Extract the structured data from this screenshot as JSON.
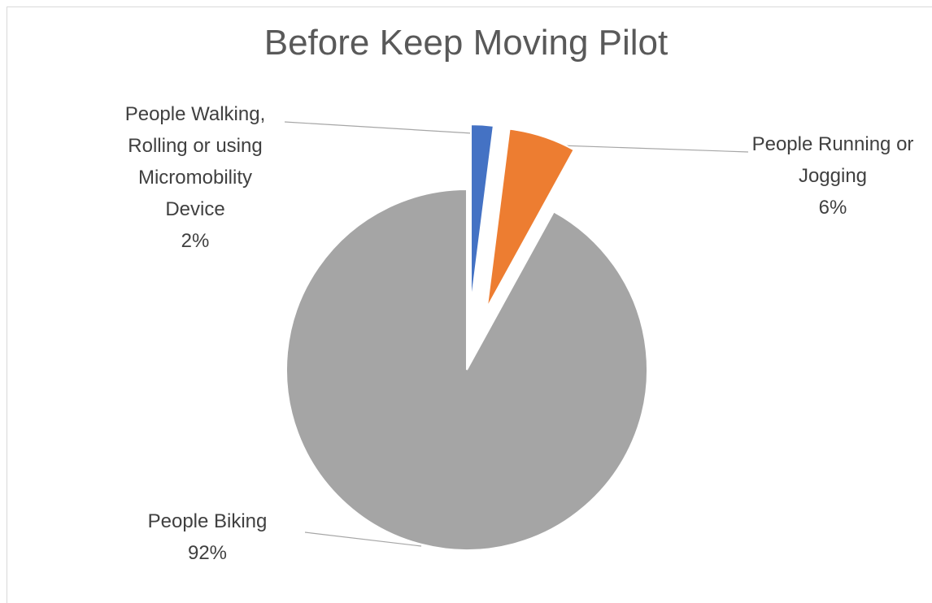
{
  "chart_data": {
    "type": "pie",
    "title": "Before Keep Moving Pilot",
    "categories": [
      "People Walking, Rolling or using Micromobility Device",
      "People Running or Jogging",
      "People Biking"
    ],
    "values": [
      2,
      6,
      92
    ],
    "value_labels": [
      "2%",
      "6%",
      "92%"
    ],
    "colors": [
      "#4472c4",
      "#ed7d31",
      "#a5a5a5"
    ]
  }
}
